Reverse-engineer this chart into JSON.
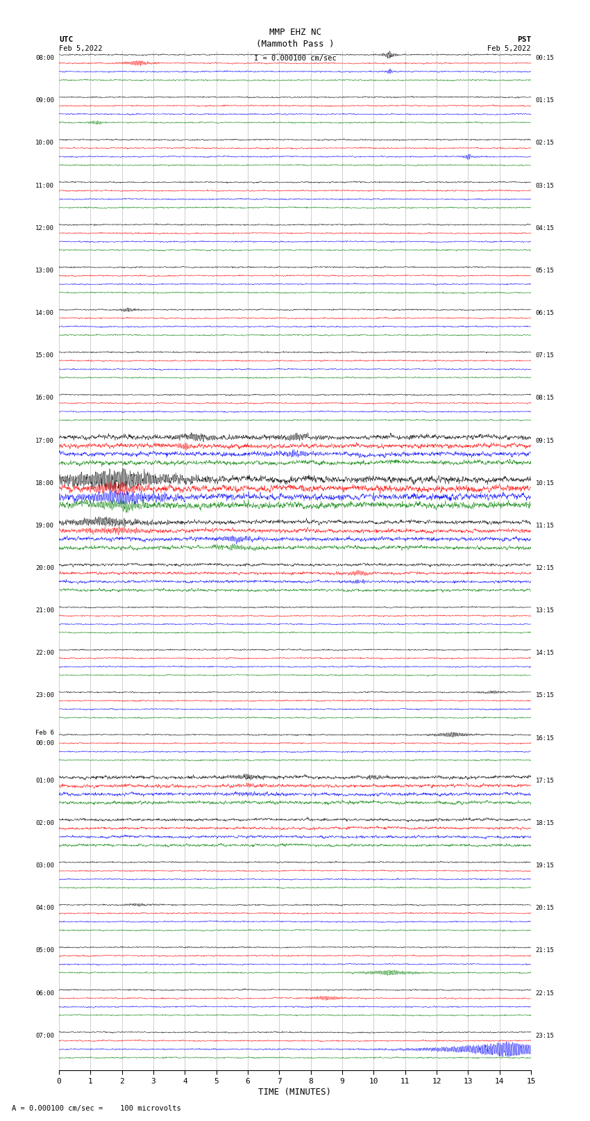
{
  "title_line1": "MMP EHZ NC",
  "title_line2": "(Mammoth Pass )",
  "scale_label": "I = 0.000100 cm/sec",
  "bottom_label": "A = 0.000100 cm/sec =    100 microvolts",
  "left_label_top": "UTC",
  "left_label_date": "Feb 5,2022",
  "right_label_top": "PST",
  "right_label_date": "Feb 5,2022",
  "xlabel": "TIME (MINUTES)",
  "utc_times": [
    "08:00",
    "09:00",
    "10:00",
    "11:00",
    "12:00",
    "13:00",
    "14:00",
    "15:00",
    "16:00",
    "17:00",
    "18:00",
    "19:00",
    "20:00",
    "21:00",
    "22:00",
    "23:00",
    "Feb 6\n00:00",
    "01:00",
    "02:00",
    "03:00",
    "04:00",
    "05:00",
    "06:00",
    "07:00"
  ],
  "pst_times": [
    "00:15",
    "01:15",
    "02:15",
    "03:15",
    "04:15",
    "05:15",
    "06:15",
    "07:15",
    "08:15",
    "09:15",
    "10:15",
    "11:15",
    "12:15",
    "13:15",
    "14:15",
    "15:15",
    "16:15",
    "17:15",
    "18:15",
    "19:15",
    "20:15",
    "21:15",
    "22:15",
    "23:15"
  ],
  "n_rows": 24,
  "n_traces_per_row": 4,
  "colors": [
    "black",
    "red",
    "blue",
    "green"
  ],
  "x_min": 0,
  "x_max": 15,
  "x_ticks": [
    0,
    1,
    2,
    3,
    4,
    5,
    6,
    7,
    8,
    9,
    10,
    11,
    12,
    13,
    14,
    15
  ],
  "fig_width": 8.5,
  "fig_height": 16.13,
  "dpi": 100,
  "background_color": "white",
  "grid_color": "#888888",
  "noise_seeds": [
    42,
    137,
    271,
    983,
    512,
    7,
    19,
    333,
    44,
    621,
    77,
    88,
    99,
    111,
    222,
    444,
    555,
    666,
    777,
    888,
    999,
    100,
    200,
    300
  ]
}
